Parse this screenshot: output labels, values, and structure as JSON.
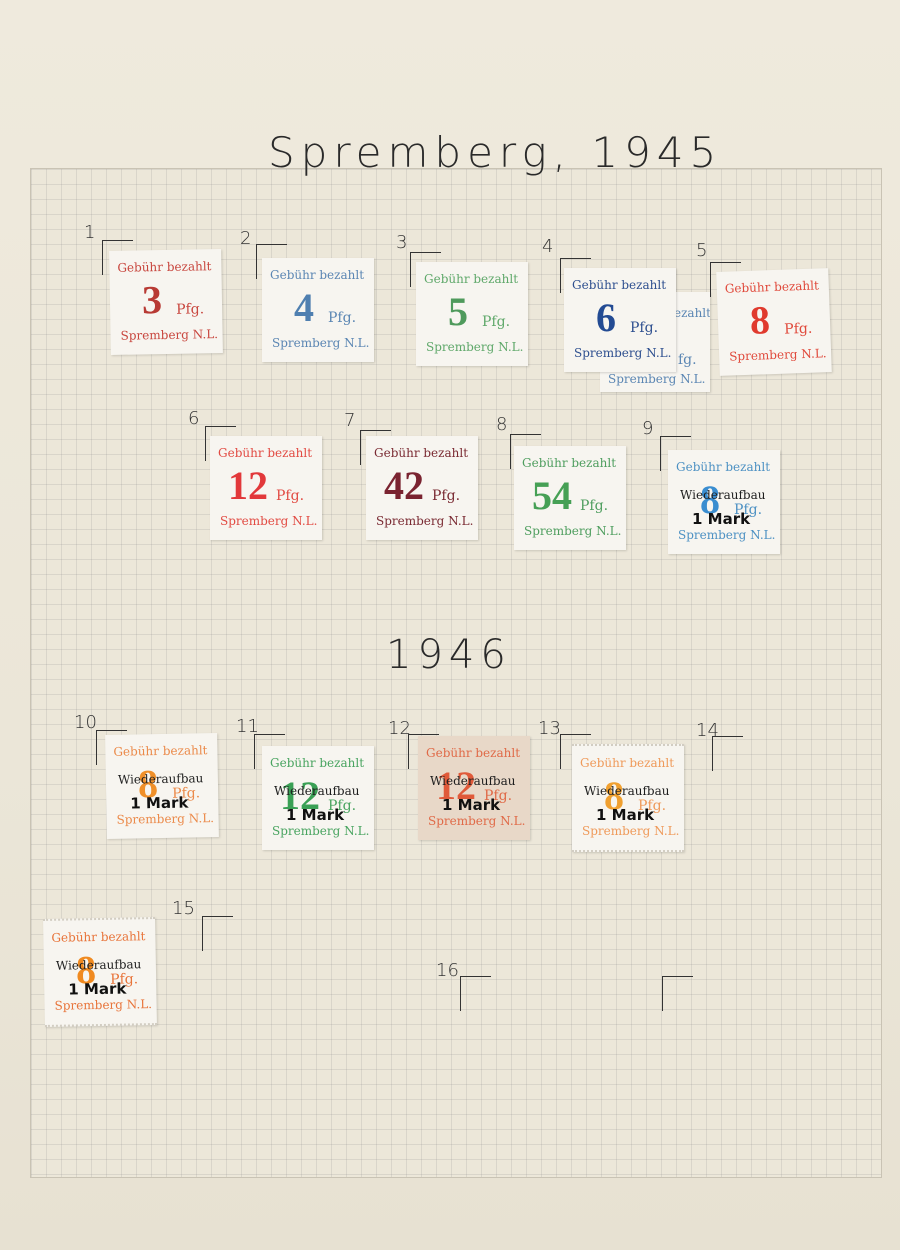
{
  "headings": {
    "y1945": "Spremberg, 1945",
    "y1946": "1946"
  },
  "stamp_text": {
    "top": "Gebühr bezahlt",
    "unit": "Pfg.",
    "bottom": "Spremberg N.L.",
    "overprint_top": "Wiederaufbau",
    "overprint_bottom": "1 Mark"
  },
  "stamps": [
    {
      "number": "1",
      "value": "3",
      "color": "#c8463e",
      "value_color": "#b83a34"
    },
    {
      "number": "2",
      "value": "4",
      "color": "#5b86b3",
      "value_color": "#4f7fb0"
    },
    {
      "number": "3",
      "value": "5",
      "color": "#5fa86a",
      "value_color": "#4f9a5c"
    },
    {
      "number": "4",
      "value": "6",
      "color": "#2e4f8f",
      "value_color": "#234b93"
    },
    {
      "number": "5",
      "value": "8",
      "color": "#e0493b",
      "value_color": "#e03a2e"
    },
    {
      "number": "6",
      "value": "12",
      "color": "#e24b43",
      "value_color": "#e2383a"
    },
    {
      "number": "7",
      "value": "42",
      "color": "#7a2a32",
      "value_color": "#7a2330"
    },
    {
      "number": "8",
      "value": "54",
      "color": "#4f9e5f",
      "value_color": "#46a055"
    },
    {
      "number": "9",
      "value": "8",
      "color": "#4d91c3",
      "value_color": "#3a8dd0",
      "overprint": true
    },
    {
      "number": "10",
      "value": "8",
      "color": "#eb8a4a",
      "value_color": "#f0902a",
      "overprint": true
    },
    {
      "number": "11",
      "value": "12",
      "color": "#49a460",
      "value_color": "#3aa055",
      "overprint": true
    },
    {
      "number": "12",
      "value": "12",
      "color": "#e06a48",
      "value_color": "#e05a3a",
      "overprint": true
    },
    {
      "number": "13",
      "value": "8",
      "color": "#ef9a5a",
      "value_color": "#f0a030",
      "overprint": true
    },
    {
      "number": "14"
    },
    {
      "number": "15",
      "value": "8",
      "color": "#e8743a",
      "value_color": "#f08a20",
      "overprint": true
    },
    {
      "number": "16"
    }
  ],
  "extra_fragments": {
    "fragment_a": "ezahlt",
    "fragment_b": "fg.",
    "fragment_c": "Spremberg N.L."
  }
}
